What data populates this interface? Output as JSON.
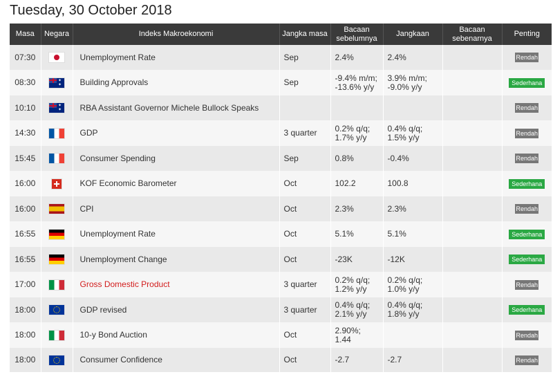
{
  "page": {
    "date_title": "Tuesday, 30 October 2018"
  },
  "table": {
    "headers": {
      "time": "Masa",
      "country": "Negara",
      "indicator": "Indeks Makroekonomi",
      "period": "Jangka masa",
      "previous": "Bacaan sebelumnya",
      "forecast": "Jangkaan",
      "actual": "Bacaan sebenarnya",
      "importance": "Penting"
    },
    "rows": [
      {
        "time": "07:30",
        "flag": "japan-flag-icon",
        "indicator": "Unemployment Rate",
        "period": "Sep",
        "previous": "2.4%",
        "forecast": "2.4%",
        "actual": "",
        "importance": "Rendah"
      },
      {
        "time": "08:30",
        "flag": "australia-flag-icon",
        "indicator": "Building Approvals",
        "period": "Sep",
        "previous": "-9.4% m/m; -13.6% y/y",
        "forecast": "3.9% m/m; -9.0% y/y",
        "actual": "",
        "importance": "Sederhana"
      },
      {
        "time": "10:10",
        "flag": "australia-flag-icon",
        "indicator": "RBA Assistant Governor Michele Bullock Speaks",
        "period": "",
        "previous": "",
        "forecast": "",
        "actual": "",
        "importance": "Rendah"
      },
      {
        "time": "14:30",
        "flag": "france-flag-icon",
        "indicator": "GDP",
        "period": "3 quarter",
        "previous": "0.2% q/q; 1.7% y/y",
        "forecast": "0.4% q/q; 1.5% y/y",
        "actual": "",
        "importance": "Rendah"
      },
      {
        "time": "15:45",
        "flag": "france-flag-icon",
        "indicator": "Consumer Spending",
        "period": "Sep",
        "previous": "0.8%",
        "forecast": "-0.4%",
        "actual": "",
        "importance": "Rendah"
      },
      {
        "time": "16:00",
        "flag": "switzerland-flag-icon",
        "indicator": "KOF Economic Barometer",
        "period": "Oct",
        "previous": "102.2",
        "forecast": "100.8",
        "actual": "",
        "importance": "Sederhana"
      },
      {
        "time": "16:00",
        "flag": "spain-flag-icon",
        "indicator": "CPI",
        "period": "Oct",
        "previous": "2.3%",
        "forecast": "2.3%",
        "actual": "",
        "importance": "Rendah"
      },
      {
        "time": "16:55",
        "flag": "germany-flag-icon",
        "indicator": "Unemployment Rate",
        "period": "Oct",
        "previous": "5.1%",
        "forecast": "5.1%",
        "actual": "",
        "importance": "Sederhana"
      },
      {
        "time": "16:55",
        "flag": "germany-flag-icon",
        "indicator": "Unemployment Change",
        "period": "Oct",
        "previous": "-23K",
        "forecast": "-12K",
        "actual": "",
        "importance": "Sederhana"
      },
      {
        "time": "17:00",
        "flag": "italy-flag-icon",
        "indicator": "Gross Domestic Product",
        "period": "3 quarter",
        "previous": "0.2% q/q; 1.2% y/y",
        "forecast": "0.2% q/q; 1.0% y/y",
        "actual": "",
        "importance": "Rendah"
      },
      {
        "time": "18:00",
        "flag": "eu-flag-icon",
        "indicator": "GDP revised",
        "period": "3 quarter",
        "previous": "0.4% q/q; 2.1% y/y",
        "forecast": "0.4% q/q; 1.8% y/y",
        "actual": "",
        "importance": "Sederhana"
      },
      {
        "time": "18:00",
        "flag": "italy-flag-icon",
        "indicator": "10-y Bond Auction",
        "period": "Oct",
        "previous": "2.90%; 1.44",
        "forecast": "",
        "actual": "",
        "importance": "Rendah"
      },
      {
        "time": "18:00",
        "flag": "eu-flag-icon",
        "indicator": "Consumer Confidence",
        "period": "Oct",
        "previous": "-2.7",
        "forecast": "-2.7",
        "actual": "",
        "importance": "Rendah"
      }
    ]
  },
  "colors": {
    "header_bg": "#3a3a3a",
    "low_badge": "#777777",
    "medium_badge": "#2aa843",
    "highlight_text": "#d21c1c"
  }
}
